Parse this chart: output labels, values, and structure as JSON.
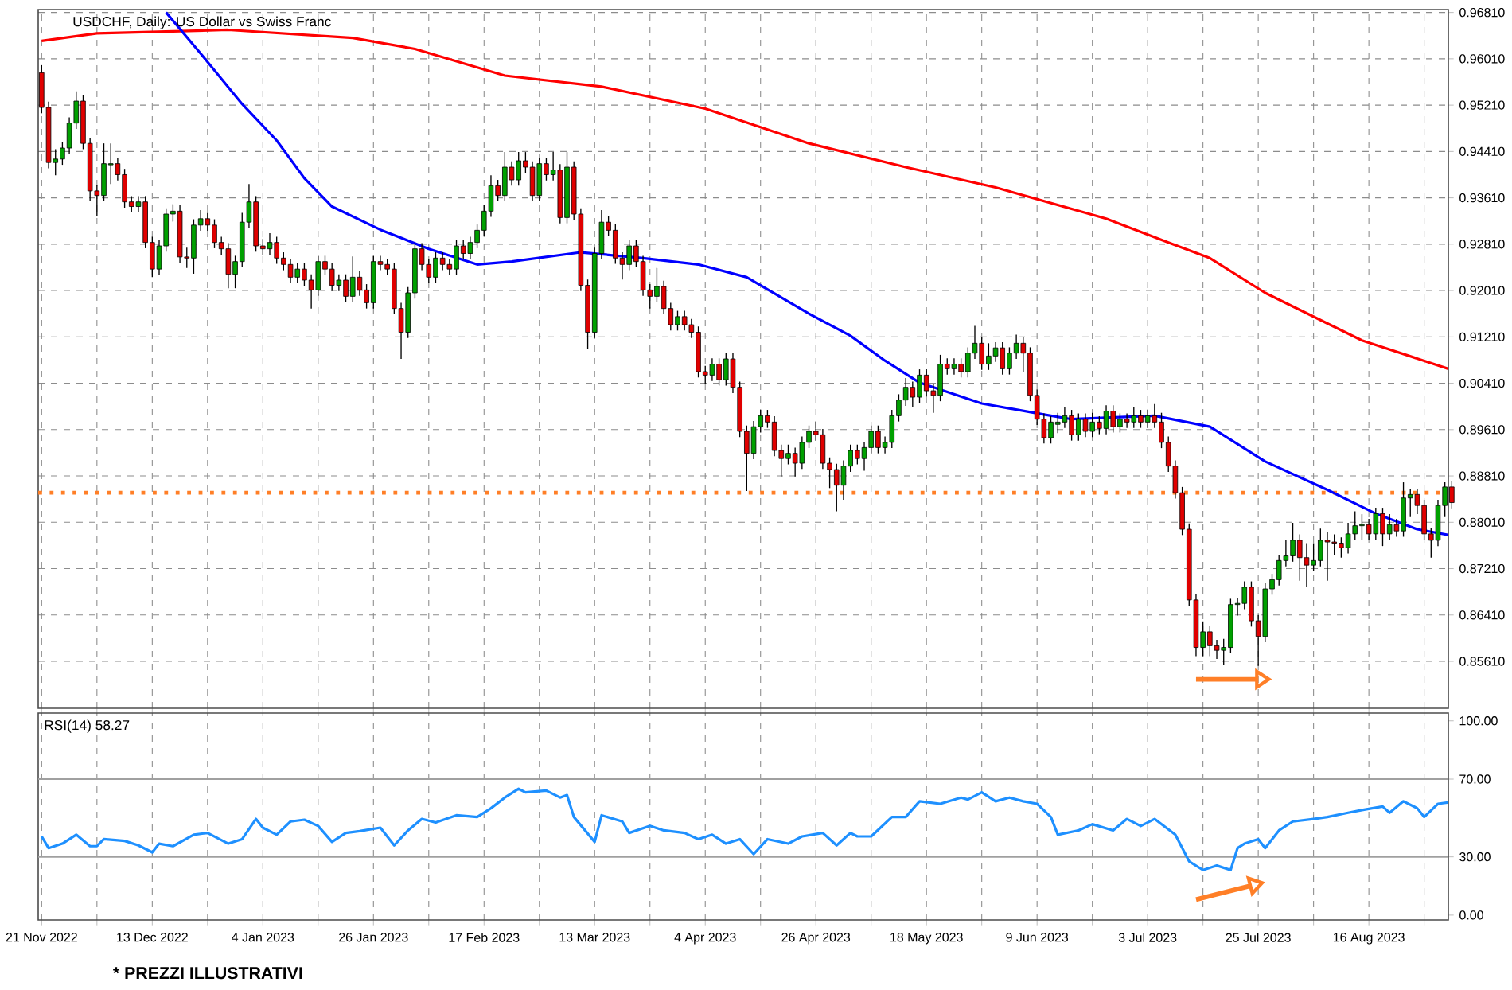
{
  "chart_data": [
    {
      "type": "candlestick",
      "title": "USDCHF, Daily:  US Dollar vs Swiss Franc",
      "categories": [
        null,
        null,
        null,
        null,
        null,
        null,
        null,
        null,
        null,
        null,
        null,
        null,
        null,
        null,
        null,
        null,
        null,
        null,
        null,
        null,
        null,
        null,
        null,
        null,
        null,
        null,
        null,
        null,
        null,
        null,
        null,
        null,
        null,
        null,
        null,
        null,
        null,
        null,
        null,
        null,
        null,
        null,
        null,
        null,
        null,
        null,
        null,
        null,
        null,
        null,
        null,
        null,
        null,
        null,
        null,
        null,
        null,
        null,
        null,
        null,
        null,
        null,
        null,
        null,
        null,
        null,
        null,
        null,
        null,
        null,
        null,
        null,
        null,
        null,
        null,
        null,
        null,
        null,
        null,
        null,
        null,
        null,
        null,
        null,
        null,
        null,
        null,
        null,
        null,
        null,
        null,
        null,
        null,
        null,
        null,
        null,
        null,
        null,
        null,
        null,
        null,
        null,
        null,
        null,
        null,
        null,
        null,
        null,
        null,
        null,
        null,
        null,
        null,
        null,
        null,
        null,
        null,
        null,
        null,
        null,
        null,
        null,
        null,
        null,
        null,
        null,
        null,
        null,
        null,
        null,
        null,
        null,
        null,
        null,
        null,
        null,
        null,
        null,
        null,
        null,
        null,
        null,
        null,
        null,
        null,
        null,
        null,
        null,
        null,
        null,
        null,
        null,
        null,
        null,
        null,
        null,
        null,
        null,
        null,
        null,
        null,
        null,
        null,
        null,
        null,
        null,
        null,
        null,
        null,
        null,
        null,
        null,
        null,
        null,
        null,
        null,
        null,
        null,
        null,
        null,
        null,
        null,
        null,
        null,
        null,
        null,
        null,
        null,
        null,
        null,
        null,
        null,
        null,
        null,
        null,
        null,
        null,
        null,
        null,
        null,
        null,
        null,
        null,
        null,
        null
      ],
      "ohlc": [
        [
          0.9577,
          0.959,
          0.9507,
          0.9517
        ],
        [
          0.9517,
          0.9527,
          0.9412,
          0.9422
        ],
        [
          0.9422,
          0.9445,
          0.94,
          0.9428
        ],
        [
          0.9428,
          0.9457,
          0.9418,
          0.9447
        ],
        [
          0.9447,
          0.95,
          0.9437,
          0.949
        ],
        [
          0.949,
          0.9545,
          0.948,
          0.9528
        ],
        [
          0.9528,
          0.9538,
          0.9445,
          0.9455
        ],
        [
          0.9455,
          0.9465,
          0.9355,
          0.9373
        ],
        [
          0.9373,
          0.9383,
          0.933,
          0.9365
        ],
        [
          0.9365,
          0.9455,
          0.9355,
          0.942
        ],
        [
          0.9418,
          0.9455,
          0.9385,
          0.942
        ],
        [
          0.942,
          0.943,
          0.9391,
          0.9401
        ],
        [
          0.9401,
          0.9411,
          0.9344,
          0.9354
        ],
        [
          0.9354,
          0.9364,
          0.9336,
          0.9346
        ],
        [
          0.9346,
          0.9364,
          0.9336,
          0.9354
        ],
        [
          0.9354,
          0.9364,
          0.9274,
          0.9284
        ],
        [
          0.9284,
          0.9294,
          0.9224,
          0.9238
        ],
        [
          0.9238,
          0.9288,
          0.9228,
          0.9278
        ],
        [
          0.9278,
          0.9343,
          0.9268,
          0.9333
        ],
        [
          0.9333,
          0.935,
          0.932,
          0.9338
        ],
        [
          0.9338,
          0.9348,
          0.9249,
          0.9259
        ],
        [
          0.9259,
          0.9275,
          0.924,
          0.9257
        ],
        [
          0.9257,
          0.9324,
          0.923,
          0.9314
        ],
        [
          0.9314,
          0.934,
          0.9304,
          0.9325
        ],
        [
          0.9325,
          0.9335,
          0.9304,
          0.9314
        ],
        [
          0.9314,
          0.9324,
          0.9274,
          0.9284
        ],
        [
          0.9284,
          0.9294,
          0.9263,
          0.9273
        ],
        [
          0.9273,
          0.9283,
          0.9205,
          0.9229
        ],
        [
          0.9229,
          0.9261,
          0.9205,
          0.9251
        ],
        [
          0.9251,
          0.9335,
          0.9241,
          0.9319
        ],
        [
          0.9319,
          0.9385,
          0.9309,
          0.9354
        ],
        [
          0.9354,
          0.9364,
          0.9268,
          0.9278
        ],
        [
          0.9278,
          0.929,
          0.9263,
          0.9273
        ],
        [
          0.9273,
          0.93,
          0.9263,
          0.9284
        ],
        [
          0.9284,
          0.9294,
          0.9247,
          0.9257
        ],
        [
          0.9257,
          0.9267,
          0.9236,
          0.9246
        ],
        [
          0.9246,
          0.9256,
          0.9214,
          0.9224
        ],
        [
          0.9224,
          0.9248,
          0.9214,
          0.9238
        ],
        [
          0.9238,
          0.9248,
          0.9209,
          0.9219
        ],
        [
          0.9219,
          0.9229,
          0.917,
          0.9202
        ],
        [
          0.9202,
          0.9261,
          0.9192,
          0.9251
        ],
        [
          0.9251,
          0.9261,
          0.9228,
          0.9238
        ],
        [
          0.9238,
          0.9248,
          0.92,
          0.921
        ],
        [
          0.921,
          0.9229,
          0.92,
          0.9219
        ],
        [
          0.9219,
          0.9229,
          0.9181,
          0.9191
        ],
        [
          0.9191,
          0.926,
          0.9181,
          0.9224
        ],
        [
          0.9224,
          0.9234,
          0.9192,
          0.9202
        ],
        [
          0.9202,
          0.9212,
          0.917,
          0.918
        ],
        [
          0.918,
          0.9261,
          0.917,
          0.9251
        ],
        [
          0.9251,
          0.9261,
          0.9236,
          0.9246
        ],
        [
          0.9246,
          0.9256,
          0.9228,
          0.9238
        ],
        [
          0.9238,
          0.9248,
          0.916,
          0.917
        ],
        [
          0.917,
          0.918,
          0.9083,
          0.9129
        ],
        [
          0.9129,
          0.9207,
          0.9119,
          0.9197
        ],
        [
          0.9197,
          0.9283,
          0.9187,
          0.9273
        ],
        [
          0.9273,
          0.9283,
          0.9236,
          0.9246
        ],
        [
          0.9246,
          0.9256,
          0.9214,
          0.9224
        ],
        [
          0.9224,
          0.9267,
          0.9214,
          0.9257
        ],
        [
          0.9257,
          0.9267,
          0.9236,
          0.9246
        ],
        [
          0.9246,
          0.9256,
          0.9228,
          0.9238
        ],
        [
          0.9238,
          0.9288,
          0.9228,
          0.9278
        ],
        [
          0.9278,
          0.9288,
          0.9255,
          0.9265
        ],
        [
          0.9265,
          0.9294,
          0.9255,
          0.9284
        ],
        [
          0.9284,
          0.9315,
          0.9274,
          0.9305
        ],
        [
          0.9305,
          0.9348,
          0.9295,
          0.9338
        ],
        [
          0.9338,
          0.94,
          0.9328,
          0.9382
        ],
        [
          0.9382,
          0.9392,
          0.9355,
          0.9365
        ],
        [
          0.9365,
          0.944,
          0.9355,
          0.9414
        ],
        [
          0.9414,
          0.9424,
          0.9382,
          0.9392
        ],
        [
          0.9392,
          0.944,
          0.9382,
          0.9425
        ],
        [
          0.9425,
          0.944,
          0.9404,
          0.9414
        ],
        [
          0.9414,
          0.9424,
          0.9355,
          0.9365
        ],
        [
          0.9365,
          0.943,
          0.9355,
          0.942
        ],
        [
          0.942,
          0.943,
          0.9391,
          0.9401
        ],
        [
          0.9401,
          0.944,
          0.9391,
          0.9409
        ],
        [
          0.9409,
          0.9419,
          0.9317,
          0.9327
        ],
        [
          0.9327,
          0.944,
          0.9317,
          0.9414
        ],
        [
          0.9414,
          0.9424,
          0.9323,
          0.9333
        ],
        [
          0.9333,
          0.9343,
          0.92,
          0.921
        ],
        [
          0.921,
          0.922,
          0.91,
          0.9129
        ],
        [
          0.9129,
          0.9275,
          0.9119,
          0.9265
        ],
        [
          0.9265,
          0.934,
          0.9255,
          0.9319
        ],
        [
          0.9319,
          0.9329,
          0.9295,
          0.9305
        ],
        [
          0.9305,
          0.9315,
          0.9247,
          0.9257
        ],
        [
          0.9257,
          0.9267,
          0.922,
          0.9246
        ],
        [
          0.9246,
          0.9288,
          0.9236,
          0.9278
        ],
        [
          0.9278,
          0.9288,
          0.9241,
          0.9251
        ],
        [
          0.9251,
          0.9261,
          0.9192,
          0.9202
        ],
        [
          0.9202,
          0.9212,
          0.917,
          0.9191
        ],
        [
          0.9191,
          0.924,
          0.9181,
          0.9208
        ],
        [
          0.9208,
          0.9218,
          0.916,
          0.917
        ],
        [
          0.917,
          0.918,
          0.9132,
          0.9142
        ],
        [
          0.9142,
          0.9166,
          0.9132,
          0.9156
        ],
        [
          0.9156,
          0.9166,
          0.9132,
          0.9142
        ],
        [
          0.9142,
          0.9152,
          0.9119,
          0.9129
        ],
        [
          0.9129,
          0.9139,
          0.9051,
          0.9061
        ],
        [
          0.9061,
          0.9071,
          0.904,
          0.9055
        ],
        [
          0.9055,
          0.9084,
          0.9045,
          0.9074
        ],
        [
          0.9074,
          0.9084,
          0.9037,
          0.9047
        ],
        [
          0.9047,
          0.9093,
          0.9037,
          0.9083
        ],
        [
          0.9083,
          0.9093,
          0.9024,
          0.9034
        ],
        [
          0.9034,
          0.9044,
          0.8948,
          0.8958
        ],
        [
          0.8958,
          0.8968,
          0.8855,
          0.892
        ],
        [
          0.892,
          0.8976,
          0.891,
          0.8966
        ],
        [
          0.8966,
          0.8995,
          0.8956,
          0.8985
        ],
        [
          0.8985,
          0.8995,
          0.8964,
          0.8974
        ],
        [
          0.8974,
          0.8984,
          0.8915,
          0.8925
        ],
        [
          0.8925,
          0.8935,
          0.888,
          0.8911
        ],
        [
          0.8911,
          0.8935,
          0.8901,
          0.892
        ],
        [
          0.892,
          0.893,
          0.888,
          0.8903
        ],
        [
          0.8903,
          0.8949,
          0.8893,
          0.8939
        ],
        [
          0.8939,
          0.8968,
          0.8929,
          0.8958
        ],
        [
          0.8958,
          0.8975,
          0.8942,
          0.8952
        ],
        [
          0.8952,
          0.8962,
          0.8893,
          0.8903
        ],
        [
          0.8903,
          0.8913,
          0.886,
          0.8892
        ],
        [
          0.8892,
          0.8902,
          0.882,
          0.8865
        ],
        [
          0.8865,
          0.8908,
          0.884,
          0.8898
        ],
        [
          0.8898,
          0.8935,
          0.8888,
          0.8925
        ],
        [
          0.8925,
          0.8935,
          0.8901,
          0.8911
        ],
        [
          0.8911,
          0.894,
          0.889,
          0.893
        ],
        [
          0.893,
          0.8968,
          0.892,
          0.8958
        ],
        [
          0.8958,
          0.8968,
          0.892,
          0.893
        ],
        [
          0.893,
          0.8949,
          0.892,
          0.8939
        ],
        [
          0.8939,
          0.8995,
          0.8929,
          0.8985
        ],
        [
          0.8985,
          0.9022,
          0.8975,
          0.9012
        ],
        [
          0.9012,
          0.905,
          0.9002,
          0.9034
        ],
        [
          0.9034,
          0.9044,
          0.9,
          0.9017
        ],
        [
          0.9017,
          0.9065,
          0.9007,
          0.9055
        ],
        [
          0.9055,
          0.9065,
          0.9018,
          0.9028
        ],
        [
          0.9028,
          0.904,
          0.899,
          0.902
        ],
        [
          0.902,
          0.909,
          0.901,
          0.9074
        ],
        [
          0.9074,
          0.9084,
          0.9056,
          0.9066
        ],
        [
          0.9066,
          0.9084,
          0.9056,
          0.9074
        ],
        [
          0.9074,
          0.9084,
          0.9051,
          0.9061
        ],
        [
          0.9061,
          0.9103,
          0.9051,
          0.9093
        ],
        [
          0.9093,
          0.914,
          0.9083,
          0.911
        ],
        [
          0.911,
          0.912,
          0.9064,
          0.9074
        ],
        [
          0.9074,
          0.911,
          0.9064,
          0.9088
        ],
        [
          0.9088,
          0.9112,
          0.9078,
          0.9102
        ],
        [
          0.9102,
          0.9112,
          0.9056,
          0.9066
        ],
        [
          0.9066,
          0.9103,
          0.9056,
          0.9093
        ],
        [
          0.9093,
          0.9125,
          0.9083,
          0.911
        ],
        [
          0.911,
          0.912,
          0.906,
          0.9093
        ],
        [
          0.9093,
          0.9103,
          0.901,
          0.902
        ],
        [
          0.902,
          0.903,
          0.8969,
          0.8979
        ],
        [
          0.8979,
          0.8989,
          0.8937,
          0.8947
        ],
        [
          0.8947,
          0.8984,
          0.8937,
          0.8974
        ],
        [
          0.897,
          0.899,
          0.8955,
          0.8974
        ],
        [
          0.8974,
          0.9,
          0.8964,
          0.8985
        ],
        [
          0.8985,
          0.8995,
          0.8942,
          0.8952
        ],
        [
          0.8952,
          0.8989,
          0.8942,
          0.8979
        ],
        [
          0.8979,
          0.8989,
          0.8948,
          0.8958
        ],
        [
          0.8958,
          0.899,
          0.8948,
          0.8974
        ],
        [
          0.8974,
          0.8984,
          0.8953,
          0.8963
        ],
        [
          0.8963,
          0.9003,
          0.8953,
          0.8993
        ],
        [
          0.8993,
          0.9003,
          0.8956,
          0.8966
        ],
        [
          0.8966,
          0.8989,
          0.8956,
          0.8979
        ],
        [
          0.8979,
          0.8989,
          0.8964,
          0.8974
        ],
        [
          0.8974,
          0.9,
          0.8964,
          0.8985
        ],
        [
          0.8985,
          0.8995,
          0.8964,
          0.8974
        ],
        [
          0.8974,
          0.8995,
          0.8964,
          0.8985
        ],
        [
          0.8985,
          0.9005,
          0.8964,
          0.8974
        ],
        [
          0.8974,
          0.899,
          0.8929,
          0.8939
        ],
        [
          0.8939,
          0.8949,
          0.8888,
          0.8898
        ],
        [
          0.8898,
          0.8908,
          0.8842,
          0.8852
        ],
        [
          0.8852,
          0.8862,
          0.8779,
          0.8789
        ],
        [
          0.8789,
          0.8799,
          0.8657,
          0.8667
        ],
        [
          0.8667,
          0.8677,
          0.857,
          0.8585
        ],
        [
          0.8585,
          0.863,
          0.857,
          0.8612
        ],
        [
          0.8612,
          0.8622,
          0.857,
          0.8588
        ],
        [
          0.8588,
          0.8598,
          0.8565,
          0.858
        ],
        [
          0.858,
          0.86,
          0.8555,
          0.8585
        ],
        [
          0.8585,
          0.8669,
          0.8575,
          0.8659
        ],
        [
          0.8659,
          0.8671,
          0.864,
          0.8661
        ],
        [
          0.8661,
          0.8699,
          0.8651,
          0.8689
        ],
        [
          0.8689,
          0.8699,
          0.8621,
          0.8631
        ],
        [
          0.8631,
          0.8641,
          0.8553,
          0.8604
        ],
        [
          0.8604,
          0.8696,
          0.8594,
          0.8686
        ],
        [
          0.8686,
          0.8712,
          0.8676,
          0.8702
        ],
        [
          0.8702,
          0.8745,
          0.8692,
          0.8735
        ],
        [
          0.8735,
          0.877,
          0.8725,
          0.8743
        ],
        [
          0.8743,
          0.88,
          0.8733,
          0.877
        ],
        [
          0.877,
          0.878,
          0.87,
          0.874
        ],
        [
          0.874,
          0.8765,
          0.869,
          0.8727
        ],
        [
          0.8727,
          0.8765,
          0.8717,
          0.8735
        ],
        [
          0.8735,
          0.879,
          0.8725,
          0.877
        ],
        [
          0.877,
          0.8785,
          0.87,
          0.8767
        ],
        [
          0.8767,
          0.878,
          0.8745,
          0.8765
        ],
        [
          0.8765,
          0.8775,
          0.874,
          0.8757
        ],
        [
          0.8757,
          0.88,
          0.8747,
          0.8781
        ],
        [
          0.8781,
          0.882,
          0.8771,
          0.8795
        ],
        [
          0.8795,
          0.8815,
          0.877,
          0.8797
        ],
        [
          0.8797,
          0.8807,
          0.8771,
          0.8781
        ],
        [
          0.8781,
          0.8826,
          0.8771,
          0.8816
        ],
        [
          0.8816,
          0.8826,
          0.876,
          0.8781
        ],
        [
          0.8781,
          0.8815,
          0.8771,
          0.8797
        ],
        [
          0.8797,
          0.8807,
          0.8776,
          0.8786
        ],
        [
          0.8786,
          0.887,
          0.8776,
          0.8843
        ],
        [
          0.8843,
          0.8859,
          0.881,
          0.8849
        ],
        [
          0.8849,
          0.8859,
          0.8815,
          0.883
        ],
        [
          0.883,
          0.884,
          0.8771,
          0.8781
        ],
        [
          0.8781,
          0.8791,
          0.874,
          0.877
        ],
        [
          0.877,
          0.884,
          0.876,
          0.883
        ],
        [
          0.883,
          0.887,
          0.881,
          0.8862
        ],
        [
          0.8862,
          0.8872,
          0.8825,
          0.8835
        ]
      ],
      "series": [
        {
          "type": "line",
          "color": "#ff0000",
          "values": [
            0.9632,
            null,
            null,
            null,
            null,
            null,
            null,
            null,
            0.9645,
            null,
            null,
            null,
            null,
            null,
            null,
            null,
            null,
            null,
            null,
            null,
            null,
            null,
            null,
            null,
            null,
            null,
            null,
            0.9651,
            null,
            null,
            null,
            null,
            null,
            null,
            null,
            null,
            null,
            null,
            null,
            null,
            null,
            null,
            null,
            null,
            null,
            0.9637,
            null,
            null,
            null,
            null,
            null,
            null,
            null,
            null,
            0.9618,
            null,
            null,
            null,
            null,
            null,
            null,
            null,
            null,
            null,
            null,
            null,
            null,
            0.9572,
            null,
            null,
            null,
            null,
            null,
            null,
            null,
            null,
            null,
            null,
            null,
            null,
            null,
            0.9553,
            null,
            null,
            null,
            null,
            null,
            null,
            null,
            null,
            null,
            null,
            null,
            null,
            null,
            null,
            0.9515,
            null,
            null,
            null,
            null,
            null,
            null,
            null,
            null,
            null,
            null,
            null,
            null,
            null,
            null,
            0.9455,
            null,
            null,
            null,
            null,
            null,
            null,
            null,
            null,
            null,
            null,
            null,
            null,
            null,
            0.9414,
            null,
            null,
            null,
            null,
            null,
            null,
            null,
            null,
            null,
            null,
            null,
            null,
            0.9379,
            null,
            null,
            null,
            null,
            null,
            null,
            null,
            null,
            null,
            null,
            null,
            null,
            null,
            null,
            null,
            0.9325,
            null,
            null,
            null,
            null,
            null,
            null,
            null,
            null,
            0.9284,
            null,
            null,
            null,
            null,
            null,
            0.9257,
            null,
            null,
            null,
            null,
            null,
            null,
            null,
            0.9197,
            null,
            null,
            null,
            null,
            null,
            null,
            null,
            null,
            null,
            null,
            null,
            null,
            null,
            0.9115,
            null,
            null,
            null,
            null,
            null,
            null,
            null,
            null,
            null,
            null,
            null,
            null,
            0.9064
          ]
        },
        {
          "type": "line",
          "color": "#0000ff",
          "values": [
            null,
            null,
            null,
            null,
            null,
            null,
            null,
            null,
            null,
            null,
            null,
            null,
            null,
            null,
            null,
            null,
            null,
            null,
            0.9681,
            null,
            null,
            null,
            null,
            0.961,
            null,
            null,
            null,
            null,
            null,
            0.9523,
            null,
            null,
            null,
            null,
            0.946,
            null,
            null,
            null,
            0.9395,
            null,
            null,
            null,
            0.9346,
            null,
            null,
            null,
            null,
            null,
            null,
            0.9306,
            null,
            null,
            null,
            null,
            null,
            null,
            0.9273,
            null,
            null,
            null,
            null,
            null,
            null,
            0.9246,
            null,
            null,
            null,
            null,
            0.9251,
            null,
            null,
            null,
            null,
            null,
            null,
            null,
            null,
            null,
            0.9267,
            null,
            null,
            null,
            null,
            null,
            null,
            null,
            null,
            0.9257,
            null,
            null,
            null,
            null,
            null,
            null,
            null,
            0.9246,
            null,
            null,
            null,
            null,
            null,
            null,
            0.9224,
            null,
            null,
            null,
            null,
            null,
            null,
            null,
            null,
            0.9161,
            null,
            null,
            null,
            null,
            null,
            0.9123,
            null,
            null,
            null,
            null,
            0.908,
            null,
            null,
            null,
            null,
            0.9042,
            null,
            null,
            null,
            null,
            null,
            null,
            null,
            null,
            0.9006,
            null,
            null,
            null,
            null,
            null,
            null,
            null,
            null,
            0.8987,
            null,
            null,
            null,
            0.8979,
            null,
            null,
            null,
            null,
            null,
            null,
            null,
            null,
            null,
            null,
            null,
            0.8985,
            null,
            null,
            null,
            null,
            null,
            null,
            null,
            0.8966,
            null,
            null,
            null,
            null,
            null,
            null,
            null,
            0.8906,
            null,
            null,
            null,
            null,
            null,
            null,
            null,
            null,
            0.8857,
            null,
            null,
            null,
            null,
            null,
            null,
            0.8816,
            null,
            null,
            null,
            null,
            null,
            0.8789,
            null,
            null,
            null,
            null,
            0.8778
          ]
        }
      ],
      "ylim": [
        0.848,
        0.9686
      ],
      "yticks": [
        {
          "value": 0.8561,
          "label": "0.85610"
        },
        {
          "value": 0.8641,
          "label": "0.86410"
        },
        {
          "value": 0.8721,
          "label": "0.87210"
        },
        {
          "value": 0.8801,
          "label": "0.88010"
        },
        {
          "value": 0.8881,
          "label": "0.88810"
        },
        {
          "value": 0.8961,
          "label": "0.89610"
        },
        {
          "value": 0.9041,
          "label": "0.90410"
        },
        {
          "value": 0.9121,
          "label": "0.91210"
        },
        {
          "value": 0.9201,
          "label": "0.92010"
        },
        {
          "value": 0.9281,
          "label": "0.92810"
        },
        {
          "value": 0.9361,
          "label": "0.93610"
        },
        {
          "value": 0.9441,
          "label": "0.94410"
        },
        {
          "value": 0.9521,
          "label": "0.95210"
        },
        {
          "value": 0.9601,
          "label": "0.96010"
        },
        {
          "value": 0.9681,
          "label": "0.96810"
        }
      ],
      "grid": true,
      "ref_lines": [
        {
          "axis": "y",
          "value": 0.8852,
          "color": "#ff7f27",
          "line_style": "dotted"
        }
      ]
    },
    {
      "type": "line",
      "title": "RSI(14) 58.27",
      "categories": [
        "21 Nov 2022",
        null,
        null,
        null,
        null,
        null,
        null,
        null,
        null,
        null,
        null,
        null,
        null,
        null,
        null,
        null,
        "13 Dec 2022",
        null,
        null,
        null,
        null,
        null,
        null,
        null,
        null,
        null,
        null,
        null,
        null,
        null,
        null,
        null,
        "4 Jan 2023",
        null,
        null,
        null,
        null,
        null,
        null,
        null,
        null,
        null,
        null,
        null,
        null,
        null,
        null,
        null,
        "26 Jan 2023",
        null,
        null,
        null,
        null,
        null,
        null,
        null,
        null,
        null,
        null,
        null,
        null,
        null,
        null,
        null,
        "17 Feb 2023",
        null,
        null,
        null,
        null,
        null,
        null,
        null,
        null,
        null,
        null,
        null,
        null,
        null,
        null,
        null,
        "13 Mar 2023",
        null,
        null,
        null,
        null,
        null,
        null,
        null,
        null,
        null,
        null,
        null,
        null,
        null,
        null,
        null,
        "4 Apr 2023",
        null,
        null,
        null,
        null,
        null,
        null,
        null,
        null,
        null,
        null,
        null,
        null,
        null,
        null,
        null,
        "26 Apr 2023",
        null,
        null,
        null,
        null,
        null,
        null,
        null,
        null,
        null,
        null,
        null,
        null,
        null,
        null,
        null,
        "18 May 2023",
        null,
        null,
        null,
        null,
        null,
        null,
        null,
        null,
        null,
        null,
        null,
        null,
        null,
        null,
        null,
        "9 Jun 2023",
        null,
        null,
        null,
        null,
        null,
        null,
        null,
        null,
        null,
        null,
        null,
        null,
        null,
        null,
        null,
        "3 Jul 2023",
        null,
        null,
        null,
        null,
        null,
        null,
        null,
        null,
        null,
        null,
        null,
        null,
        null,
        null,
        null,
        "25 Jul 2023",
        null,
        null,
        null,
        null,
        null,
        null,
        null,
        null,
        null,
        null,
        null,
        null,
        null,
        null,
        null,
        "16 Aug 2023",
        null,
        null,
        null,
        null,
        null,
        null,
        null,
        null,
        null,
        null,
        null,
        null
      ],
      "values": [
        40.5,
        34.5,
        null,
        36.8,
        null,
        41.4,
        null,
        35.5,
        35.5,
        39.1,
        null,
        null,
        38.2,
        null,
        35.9,
        null,
        32.3,
        36.8,
        null,
        35.5,
        null,
        null,
        41.4,
        null,
        42.3,
        null,
        null,
        36.8,
        null,
        39.1,
        null,
        49.5,
        45.0,
        null,
        41.4,
        null,
        48.2,
        null,
        49.1,
        null,
        45.9,
        null,
        37.7,
        null,
        42.3,
        null,
        43.2,
        null,
        null,
        45.0,
        null,
        35.9,
        null,
        43.6,
        null,
        49.5,
        null,
        47.7,
        null,
        null,
        51.4,
        null,
        null,
        50.5,
        null,
        55.0,
        null,
        60.5,
        null,
        65.0,
        63.2,
        null,
        null,
        64.1,
        null,
        60.5,
        61.8,
        50.5,
        null,
        null,
        37.7,
        51.4,
        null,
        null,
        48.2,
        42.3,
        null,
        null,
        45.9,
        null,
        43.6,
        null,
        null,
        42.3,
        null,
        39.1,
        null,
        41.4,
        null,
        36.8,
        null,
        39.1,
        null,
        31.4,
        null,
        39.1,
        null,
        null,
        36.8,
        null,
        40.5,
        null,
        null,
        42.3,
        null,
        35.9,
        null,
        42.3,
        40.5,
        null,
        40.5,
        null,
        null,
        50.5,
        null,
        50.5,
        null,
        58.6,
        null,
        null,
        57.3,
        null,
        null,
        60.5,
        59.5,
        null,
        63.2,
        null,
        58.6,
        null,
        60.5,
        null,
        58.6,
        null,
        57.3,
        null,
        50.5,
        41.4,
        null,
        null,
        43.6,
        null,
        46.8,
        null,
        null,
        43.6,
        null,
        49.5,
        null,
        45.9,
        null,
        49.5,
        null,
        null,
        41.4,
        null,
        27.7,
        null,
        23.2,
        null,
        25.5,
        null,
        23.2,
        34.5,
        36.8,
        null,
        39.1,
        34.5,
        null,
        43.6,
        null,
        48.2,
        null,
        null,
        49.5,
        null,
        50.5,
        null,
        null,
        52.7,
        null,
        54.1,
        null,
        null,
        55.9,
        52.7,
        null,
        58.6,
        null,
        55.0,
        50.5,
        null,
        57.3,
        null,
        58.3
      ],
      "color": "#1e90ff",
      "ylim": [
        -2.5,
        104
      ],
      "yticks": [
        {
          "value": 0,
          "label": "0.00"
        },
        {
          "value": 30,
          "label": "30.00"
        },
        {
          "value": 70,
          "label": "70.00"
        },
        {
          "value": 100,
          "label": "100.00"
        }
      ],
      "grid": "x",
      "ref_lines": [
        {
          "axis": "y",
          "value": 70,
          "color": "#a0a0a0",
          "line_style": "solid"
        },
        {
          "axis": "y",
          "value": 30,
          "color": "#a0a0a0",
          "line_style": "solid"
        }
      ],
      "annotations": [
        "* PREZZI ILLUSTRATIVI"
      ]
    }
  ]
}
